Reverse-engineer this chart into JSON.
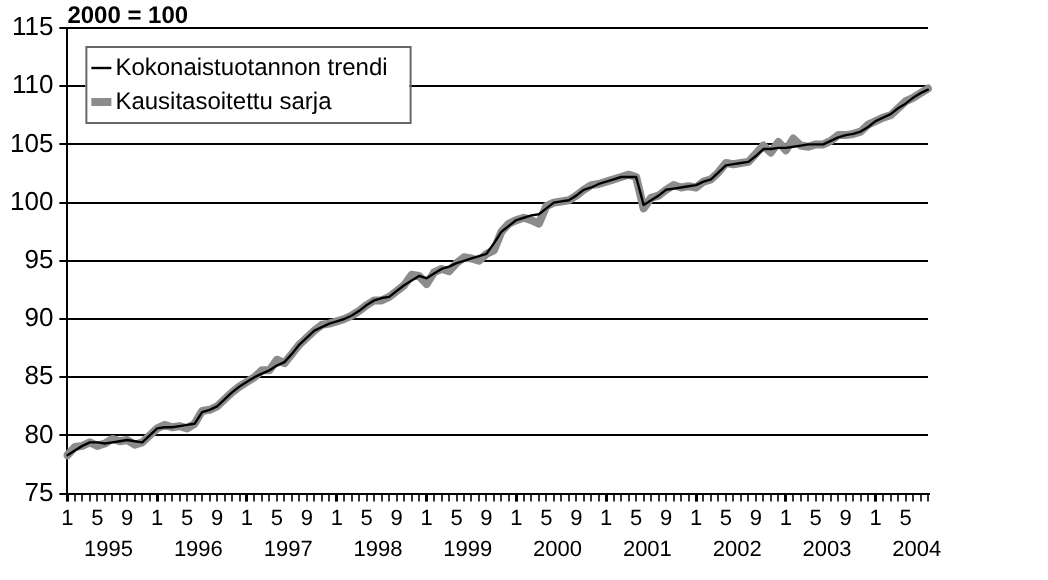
{
  "chart_data": {
    "type": "line",
    "title": "2000 = 100",
    "categories": [
      "1",
      null,
      null,
      null,
      "5",
      null,
      null,
      null,
      "9",
      null,
      null,
      null,
      "1",
      null,
      null,
      null,
      "5",
      null,
      null,
      null,
      "9",
      null,
      null,
      null,
      "1",
      null,
      null,
      null,
      "5",
      null,
      null,
      null,
      "9",
      null,
      null,
      null,
      "1",
      null,
      null,
      null,
      "5",
      null,
      null,
      null,
      "9",
      null,
      null,
      null,
      "1",
      null,
      null,
      null,
      "5",
      null,
      null,
      null,
      "9",
      null,
      null,
      null,
      "1",
      null,
      null,
      null,
      "5",
      null,
      null,
      null,
      "9",
      null,
      null,
      null,
      "1",
      null,
      null,
      null,
      "5",
      null,
      null,
      null,
      "9",
      null,
      null,
      null,
      "1",
      null,
      null,
      null,
      "5",
      null,
      null,
      null,
      "9",
      null,
      null,
      null,
      "1",
      null,
      null,
      null,
      "5",
      null,
      null,
      null,
      "9",
      null,
      null,
      null,
      "1",
      null,
      null,
      null,
      "5",
      null,
      null,
      null
    ],
    "series": [
      {
        "name": "Kokonaistuotannon trendi",
        "color": "#000000",
        "values": [
          78.3,
          78.7,
          79.1,
          79.4,
          79.4,
          79.3,
          79.4,
          79.5,
          79.6,
          79.5,
          79.4,
          80.0,
          80.6,
          80.7,
          80.7,
          80.8,
          80.9,
          81.0,
          82.0,
          82.2,
          82.5,
          83.1,
          83.7,
          84.2,
          84.6,
          85.0,
          85.3,
          85.6,
          86.0,
          86.3,
          87.0,
          87.8,
          88.4,
          89.0,
          89.3,
          89.6,
          89.8,
          90.0,
          90.3,
          90.7,
          91.2,
          91.6,
          91.8,
          91.9,
          92.4,
          92.9,
          93.3,
          93.7,
          93.5,
          93.9,
          94.3,
          94.5,
          94.8,
          95.0,
          95.2,
          95.4,
          95.6,
          96.5,
          97.5,
          98.0,
          98.5,
          98.7,
          98.9,
          99.0,
          99.5,
          100.0,
          100.1,
          100.2,
          100.6,
          101.1,
          101.3,
          101.6,
          101.8,
          102.0,
          102.2,
          102.2,
          102.2,
          99.8,
          100.2,
          100.6,
          101.1,
          101.2,
          101.3,
          101.4,
          101.5,
          101.8,
          102.0,
          102.6,
          103.2,
          103.3,
          103.4,
          103.5,
          104.0,
          104.6,
          104.6,
          104.7,
          104.7,
          104.8,
          104.9,
          105.0,
          105.0,
          105.0,
          105.3,
          105.6,
          105.8,
          105.9,
          106.1,
          106.5,
          107.0,
          107.3,
          107.6,
          108.1,
          108.5,
          109.0,
          109.4,
          109.7
        ]
      },
      {
        "name": "Kausitasoitettu sarja",
        "color": "#8c8c8c",
        "values": [
          78.3,
          79.0,
          79.1,
          79.4,
          79.1,
          79.3,
          79.7,
          79.5,
          79.6,
          79.2,
          79.4,
          80.0,
          80.6,
          80.9,
          80.7,
          80.8,
          80.6,
          81.0,
          82.1,
          82.2,
          82.5,
          83.1,
          83.7,
          84.2,
          84.6,
          85.0,
          85.6,
          85.6,
          86.5,
          86.2,
          87.0,
          87.8,
          88.4,
          89.0,
          89.5,
          89.6,
          89.8,
          90.0,
          90.3,
          90.7,
          91.2,
          91.6,
          91.6,
          91.9,
          92.4,
          92.9,
          93.8,
          93.7,
          93.0,
          94.0,
          94.3,
          94.1,
          94.8,
          95.3,
          95.2,
          95.0,
          95.6,
          95.9,
          97.5,
          98.2,
          98.5,
          98.7,
          98.5,
          98.2,
          99.7,
          100.0,
          100.1,
          100.2,
          100.6,
          101.1,
          101.5,
          101.6,
          101.8,
          102.0,
          102.2,
          102.4,
          102.2,
          99.5,
          100.4,
          100.6,
          101.1,
          101.5,
          101.3,
          101.4,
          101.3,
          101.8,
          102.0,
          102.6,
          103.4,
          103.3,
          103.4,
          103.5,
          104.2,
          104.9,
          104.3,
          105.2,
          104.5,
          105.5,
          104.9,
          104.8,
          105.0,
          105.0,
          105.3,
          105.8,
          105.8,
          105.9,
          106.1,
          106.7,
          107.0,
          107.3,
          107.5,
          108.1,
          108.7,
          109.0,
          109.4,
          109.8
        ]
      }
    ],
    "ylim": [
      75,
      115
    ],
    "yticks": [
      75,
      80,
      85,
      90,
      95,
      100,
      105,
      110,
      115
    ],
    "grid": "y",
    "legend": "top left",
    "annotations": [
      "1995",
      "1996",
      "1997",
      "1998",
      "1999",
      "2000",
      "2001",
      "2002",
      "2003",
      "2004"
    ]
  }
}
